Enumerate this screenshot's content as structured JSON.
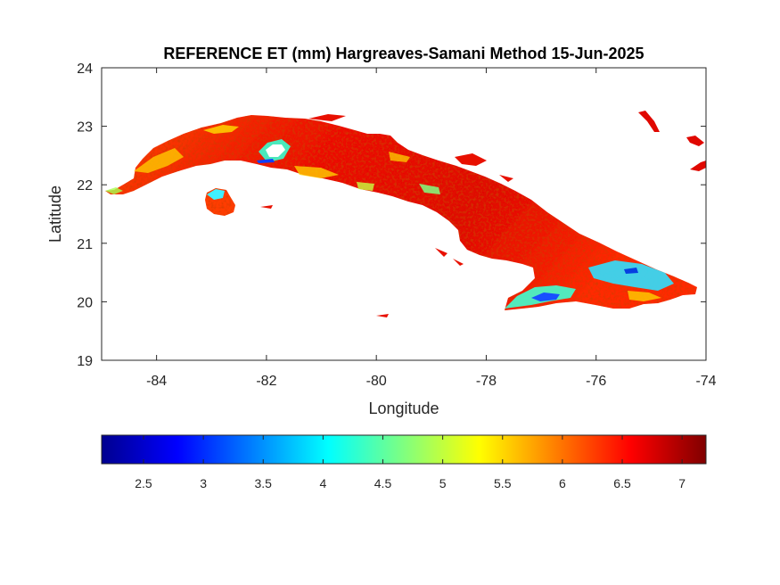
{
  "title": "REFERENCE ET (mm) Hargreaves-Samani Method  15-Jun-2025",
  "chart_data": {
    "type": "heatmap",
    "title": "REFERENCE ET (mm) Hargreaves-Samani Method  15-Jun-2025",
    "xlabel": "Longitude",
    "ylabel": "Latitude",
    "xlim": [
      -85,
      -74
    ],
    "ylim": [
      19,
      24
    ],
    "x_ticks": [
      -84,
      -82,
      -80,
      -78,
      -76,
      -74
    ],
    "y_ticks": [
      19,
      20,
      21,
      22,
      23,
      24
    ],
    "x_tick_labels": [
      "-84",
      "-82",
      "-80",
      "-78",
      "-76",
      "-74"
    ],
    "y_tick_labels": [
      "19",
      "20",
      "21",
      "22",
      "23",
      "24"
    ],
    "colorbar": {
      "placement": "bottom",
      "colormap": "jet",
      "range": [
        2.15,
        7.2
      ],
      "ticks": [
        2.5,
        3,
        3.5,
        4,
        4.5,
        5,
        5.5,
        6,
        6.5,
        7
      ],
      "tick_labels": [
        "2.5",
        "3",
        "3.5",
        "4",
        "4.5",
        "5",
        "5.5",
        "6",
        "6.5",
        "7"
      ]
    },
    "grid": false
  }
}
